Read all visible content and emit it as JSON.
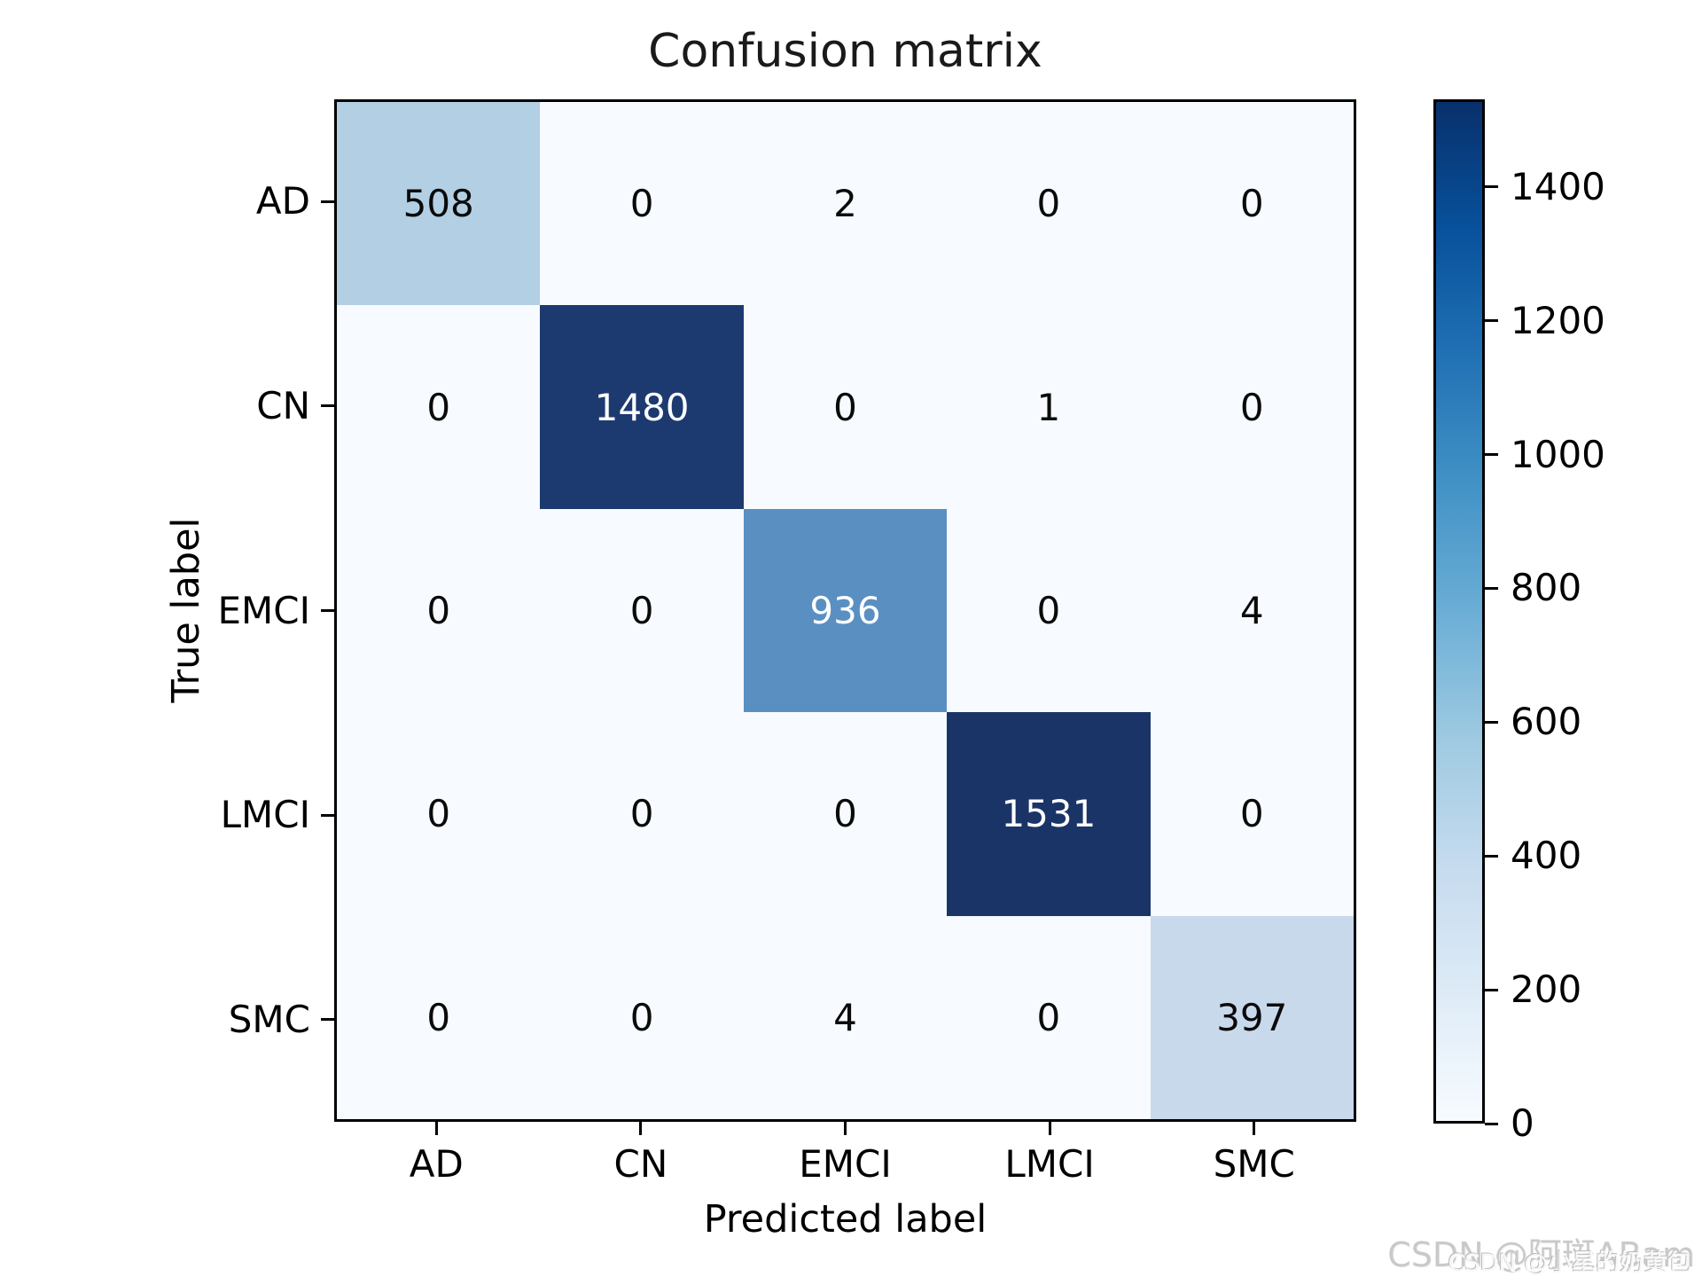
{
  "title": "Confusion matrix",
  "axes": {
    "x_label": "Predicted label",
    "y_label": "True label",
    "x_tick_labels": [
      "AD",
      "CN",
      "EMCI",
      "LMCI",
      "SMC"
    ],
    "y_tick_labels": [
      "AD",
      "CN",
      "EMCI",
      "LMCI",
      "SMC"
    ]
  },
  "chart_data": {
    "type": "heatmap",
    "title": "Confusion matrix",
    "xlabel": "Predicted label",
    "ylabel": "True label",
    "categories": [
      "AD",
      "CN",
      "EMCI",
      "LMCI",
      "SMC"
    ],
    "matrix": [
      [
        508,
        0,
        2,
        0,
        0
      ],
      [
        0,
        1480,
        0,
        1,
        0
      ],
      [
        0,
        0,
        936,
        0,
        4
      ],
      [
        0,
        0,
        0,
        1531,
        0
      ],
      [
        0,
        0,
        4,
        0,
        397
      ]
    ],
    "vmin": 0,
    "vmax": 1531,
    "colormap": "Blues",
    "legend_position": "right-colorbar",
    "grid": false,
    "cell_colors": [
      [
        "#b2cfe4",
        "#f7fbff",
        "#f7fbff",
        "#f7fbff",
        "#f7fbff"
      ],
      [
        "#f7fbff",
        "#1c3a6f",
        "#f7fbff",
        "#f7fbff",
        "#f7fbff"
      ],
      [
        "#f7fbff",
        "#f7fbff",
        "#5a8fc2",
        "#f7fbff",
        "#f7fbff"
      ],
      [
        "#f7fbff",
        "#f7fbff",
        "#f7fbff",
        "#1b3468",
        "#f7fbff"
      ],
      [
        "#f7fbff",
        "#f7fbff",
        "#f7fbff",
        "#f7fbff",
        "#c8d9ec"
      ]
    ],
    "cell_text_colors": [
      [
        "#0a0a0a",
        "#0a0a0a",
        "#0a0a0a",
        "#0a0a0a",
        "#0a0a0a"
      ],
      [
        "#0a0a0a",
        "#ffffff",
        "#0a0a0a",
        "#0a0a0a",
        "#0a0a0a"
      ],
      [
        "#0a0a0a",
        "#0a0a0a",
        "#ffffff",
        "#0a0a0a",
        "#0a0a0a"
      ],
      [
        "#0a0a0a",
        "#0a0a0a",
        "#0a0a0a",
        "#ffffff",
        "#0a0a0a"
      ],
      [
        "#0a0a0a",
        "#0a0a0a",
        "#0a0a0a",
        "#0a0a0a",
        "#0a0a0a"
      ]
    ]
  },
  "colorbar": {
    "ticks": [
      0,
      200,
      400,
      600,
      800,
      1000,
      1200,
      1400
    ],
    "max_value": 1531,
    "gradient_bottom_to_top": [
      "#f7fbff",
      "#deebf7",
      "#c6dbef",
      "#9ecae1",
      "#6baed6",
      "#4292c6",
      "#2171b5",
      "#08519c",
      "#08306b"
    ]
  },
  "watermarks": {
    "large": "CSDN @阿斑ABam",
    "small": "CSDN @小星的奶黄包"
  },
  "colors": {
    "background": "#ffffff",
    "spine": "#000000",
    "title_text": "#1a1a1a",
    "watermark_large": "#c9c9c9"
  }
}
